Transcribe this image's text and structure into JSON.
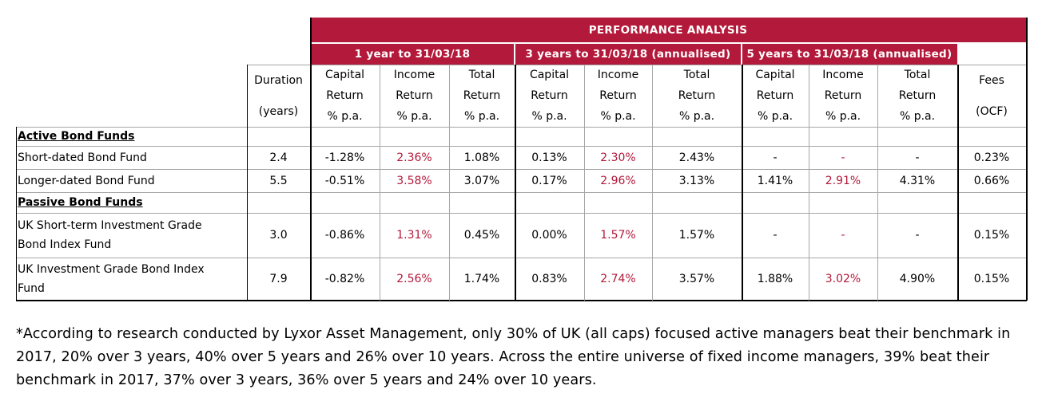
{
  "header": {
    "title": "PERFORMANCE ANALYSIS",
    "periods": [
      "1 year to 31/03/18",
      "3 years to 31/03/18 (annualised)",
      "5 years to 31/03/18 (annualised)"
    ]
  },
  "columns": {
    "duration": [
      "Duration",
      "(years)"
    ],
    "capital": [
      "Capital",
      "Return",
      "% p.a."
    ],
    "income": [
      "Income",
      "Return",
      "% p.a."
    ],
    "total": [
      "Total",
      "Return",
      "% p.a."
    ],
    "fees": [
      "Fees",
      "(OCF)"
    ]
  },
  "sections": {
    "active": "Active Bond Funds",
    "passive": "Passive Bond Funds"
  },
  "rows": [
    {
      "fund": [
        "Short-dated Bond Fund"
      ],
      "duration": "2.4",
      "values": [
        "-1.28%",
        "2.36%",
        "1.08%",
        "0.13%",
        "2.30%",
        "2.43%",
        "-",
        "-",
        "-"
      ],
      "fees": "0.23%"
    },
    {
      "fund": [
        "Longer-dated Bond Fund"
      ],
      "duration": "5.5",
      "values": [
        "-0.51%",
        "3.58%",
        "3.07%",
        "0.17%",
        "2.96%",
        "3.13%",
        "1.41%",
        "2.91%",
        "4.31%"
      ],
      "fees": "0.66%"
    },
    {
      "fund": [
        "UK Short-term Investment Grade",
        "Bond Index Fund"
      ],
      "duration": "3.0",
      "values": [
        "-0.86%",
        "1.31%",
        "0.45%",
        "0.00%",
        "1.57%",
        "1.57%",
        "-",
        "-",
        "-"
      ],
      "fees": "0.15%"
    },
    {
      "fund": [
        "UK Investment Grade Bond Index",
        "Fund"
      ],
      "duration": "7.9",
      "values": [
        "-0.82%",
        "2.56%",
        "1.74%",
        "0.83%",
        "2.74%",
        "3.57%",
        "1.88%",
        "3.02%",
        "4.90%"
      ],
      "fees": "0.15%"
    }
  ],
  "footnote": "*According to research conducted by Lyxor Asset Management, only 30% of UK (all caps) focused active managers beat their benchmark in 2017, 20% over 3 years, 40% over 5 years and 26% over 10 years.  Across the entire universe of fixed income managers, 39% beat their benchmark in 2017, 37% over 3 years, 36% over 5 years and 24% over 10 years.",
  "colors": {
    "accent": "#b3193a"
  }
}
